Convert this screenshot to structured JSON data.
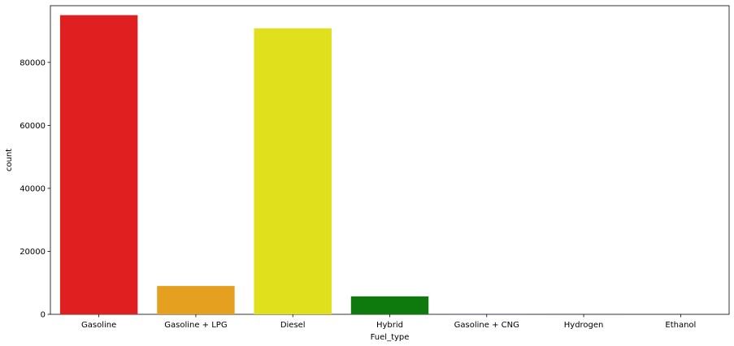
{
  "chart_data": {
    "type": "bar",
    "title": "",
    "xlabel": "Fuel_type",
    "ylabel": "count",
    "categories": [
      "Gasoline",
      "Gasoline + LPG",
      "Diesel",
      "Hybrid",
      "Gasoline + CNG",
      "Hydrogen",
      "Ethanol"
    ],
    "values": [
      95000,
      9000,
      90800,
      5700,
      50,
      10,
      5
    ],
    "colors": [
      "#e02020",
      "#e5a01f",
      "#e0e01c",
      "#0e7a0e",
      "#1f3fcf",
      "#4b0082",
      "#8a2be2"
    ],
    "ylim": [
      0,
      98000
    ],
    "yticks": [
      0,
      20000,
      40000,
      60000,
      80000
    ],
    "ytick_labels": [
      "0",
      "20000",
      "40000",
      "60000",
      "80000"
    ],
    "grid": false,
    "legend": "none"
  }
}
